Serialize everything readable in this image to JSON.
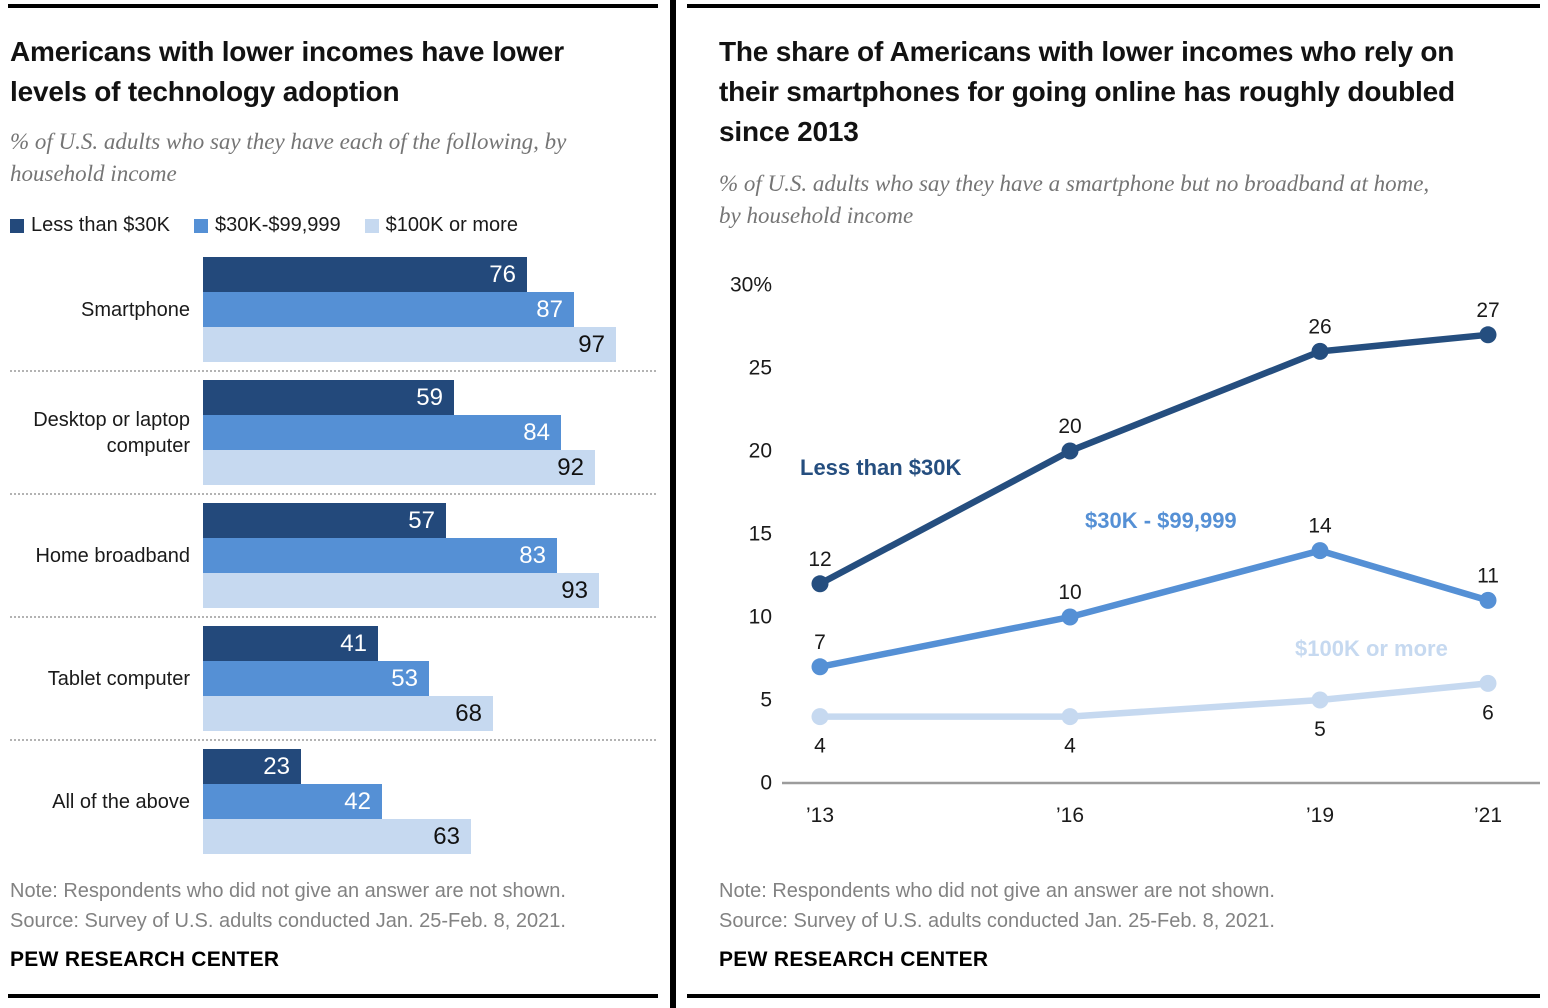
{
  "colors": {
    "dark": "#23497B",
    "medium": "#5590D5",
    "light": "#C6D9F0",
    "line_dark": "#254E7F",
    "axis": "#9C9C9C",
    "value_on_dark": "#FFFFFF",
    "value_on_light": "#111111"
  },
  "left_panel": {
    "title": "Americans with lower incomes have lower levels of technology adoption",
    "subtitle": "% of U.S. adults who say they have each of the following, by household income",
    "note": "Note: Respondents who did not give an answer are not shown.",
    "source": "Source: Survey of U.S. adults conducted Jan. 25-Feb. 8, 2021.",
    "footer": "PEW RESEARCH CENTER"
  },
  "right_panel": {
    "title": "The share of Americans with lower incomes who rely on their smartphones for going online has roughly doubled since 2013",
    "subtitle": "% of U.S. adults who say they have a smartphone but no broadband at home, by household income",
    "note": "Note: Respondents who did not give an answer are not shown.",
    "source": "Source: Survey of U.S. adults conducted Jan. 25-Feb. 8, 2021.",
    "footer": "PEW RESEARCH CENTER"
  },
  "chart_data": [
    {
      "type": "bar",
      "orientation": "horizontal",
      "title": "Americans with lower incomes have lower levels of technology adoption",
      "categories": [
        "Smartphone",
        "Desktop or laptop computer",
        "Home broadband",
        "Tablet computer",
        "All of the above"
      ],
      "series": [
        {
          "name": "Less than $30K",
          "values": [
            76,
            59,
            57,
            41,
            23
          ]
        },
        {
          "name": "$30K-$99,999",
          "values": [
            87,
            84,
            83,
            53,
            42
          ]
        },
        {
          "name": "$100K or more",
          "values": [
            97,
            92,
            93,
            68,
            63
          ]
        }
      ],
      "xlim": [
        0,
        100
      ],
      "value_labels": "inside-end",
      "legend_position": "top"
    },
    {
      "type": "line",
      "title": "The share of Americans with lower incomes who rely on their smartphones for going online has roughly doubled since 2013",
      "x_labels": [
        "’13",
        "’16",
        "’19",
        "’21"
      ],
      "x_values": [
        2013,
        2016,
        2019,
        2021
      ],
      "y_ticks": [
        {
          "label": "30%",
          "value": 30
        },
        {
          "label": "25",
          "value": 25
        },
        {
          "label": "20",
          "value": 20
        },
        {
          "label": "15",
          "value": 15
        },
        {
          "label": "10",
          "value": 10
        },
        {
          "label": "5",
          "value": 5
        },
        {
          "label": "0",
          "value": 0
        }
      ],
      "ylim": [
        0,
        30
      ],
      "grid": false,
      "legend_position": "inline-labels",
      "series": [
        {
          "name": "Less than $30K",
          "values": [
            12,
            20,
            26,
            27
          ]
        },
        {
          "name": "$30K - $99,999",
          "values": [
            7,
            10,
            14,
            11
          ]
        },
        {
          "name": "$100K or more",
          "values": [
            4,
            4,
            5,
            6
          ]
        }
      ]
    }
  ]
}
